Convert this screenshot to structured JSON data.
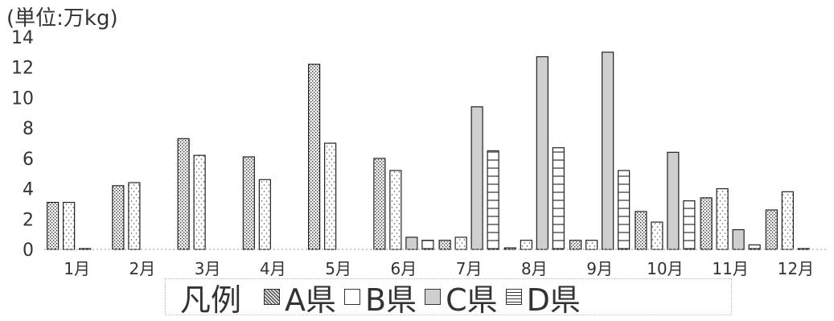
{
  "chart_data": {
    "type": "bar",
    "unit_label": "(単位:万kg)",
    "categories": [
      "1月",
      "2月",
      "3月",
      "4月",
      "5月",
      "6月",
      "7月",
      "8月",
      "9月",
      "10月",
      "11月",
      "12月"
    ],
    "ylim": [
      0,
      14
    ],
    "yticks": [
      0,
      2,
      4,
      6,
      8,
      10,
      12,
      14
    ],
    "grid": false,
    "legend_title": "凡例",
    "legend_position": "bottom",
    "series": [
      {
        "name": "A県",
        "pattern": "crosshatch",
        "values": [
          3.1,
          4.2,
          7.3,
          6.1,
          12.2,
          6.0,
          0.6,
          0.1,
          0.6,
          2.5,
          3.4,
          2.6
        ]
      },
      {
        "name": "B県",
        "pattern": "dotted",
        "values": [
          3.1,
          4.4,
          6.2,
          4.6,
          7.0,
          5.2,
          0.8,
          0.6,
          0.6,
          1.8,
          4.0,
          3.8
        ]
      },
      {
        "name": "C県",
        "pattern": "gray",
        "values": [
          0.05,
          0.0,
          0.0,
          0.0,
          0.0,
          0.8,
          9.4,
          12.7,
          13.0,
          6.4,
          1.3,
          0.05
        ]
      },
      {
        "name": "D県",
        "pattern": "horizontal-lines",
        "values": [
          0.0,
          0.0,
          0.0,
          0.0,
          0.0,
          0.6,
          6.5,
          6.7,
          5.2,
          3.2,
          0.3,
          0.0
        ]
      }
    ],
    "colors": {
      "axis": "#555555",
      "bar_stroke": "#222222",
      "gray_fill": "#cfcfcf"
    }
  }
}
